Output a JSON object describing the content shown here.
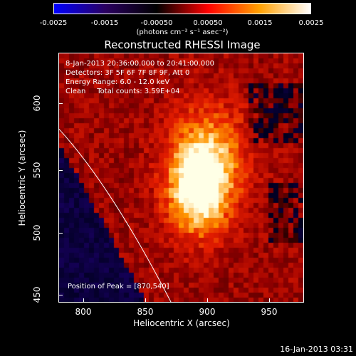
{
  "colorbar": {
    "ticks": [
      "-0.0025",
      "-0.0015",
      "-0.00050",
      "0.00050",
      "0.0015",
      "0.0025"
    ],
    "units": "(photons cm⁻² s⁻¹ asec⁻²)",
    "colors": [
      "#0000ff",
      "#2a0060",
      "#000000",
      "#ff0000",
      "#ffa000",
      "#ffffff"
    ]
  },
  "title": "Reconstructed RHESSI Image",
  "info": {
    "time_range": "8-Jan-2013 20:36:00.000 to 20:41:00.000",
    "detectors": "Detectors: 3F 5F 6F 7F 8F 9F, Att 0",
    "energy": "Energy Range: 6.0 - 12.0 keV",
    "clean": "Clean     Total counts: 3.59E+04"
  },
  "peak": "Position of Peak = [870,540]",
  "axes": {
    "xlabel": "Heliocentric X (arcsec)",
    "ylabel": "Heliocentric Y (arcsec)",
    "xticks": [
      "800",
      "850",
      "900",
      "950"
    ],
    "yticks": [
      "600",
      "550",
      "500",
      "450"
    ]
  },
  "stamp": "16-Jan-2013 03:31",
  "chart_data": {
    "type": "heatmap",
    "title": "Reconstructed RHESSI Image",
    "xlabel": "Heliocentric X (arcsec)",
    "ylabel": "Heliocentric Y (arcsec)",
    "xlim": [
      780,
      972
    ],
    "ylim": [
      445,
      640
    ],
    "colorbar_range": [
      -0.0025,
      0.0025
    ],
    "peak": [
      870,
      540
    ],
    "limb_visible": true
  }
}
